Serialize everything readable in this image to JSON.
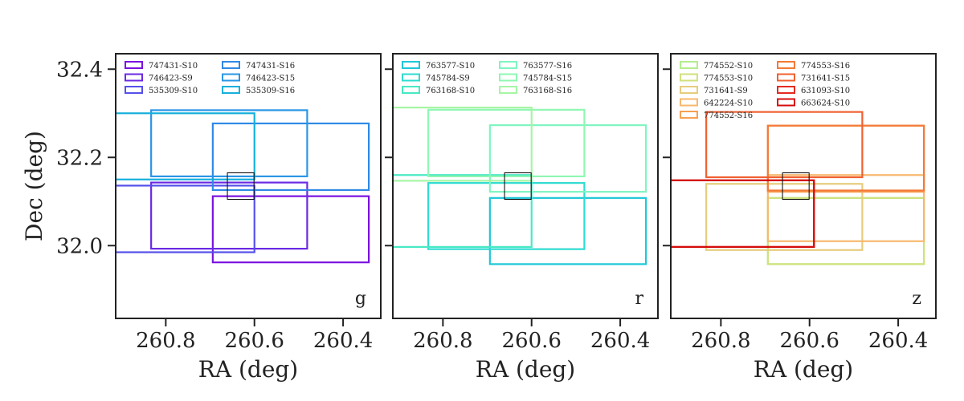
{
  "chart_data": [
    {
      "type": "footprint",
      "band": "g",
      "xlabel": "RA (deg)",
      "ylabel": "Dec (deg)",
      "xlim": [
        260.913,
        260.315
      ],
      "ylim": [
        31.835,
        32.435
      ],
      "xticks": [
        260.8,
        260.6,
        260.4
      ],
      "yticks": [
        32.0,
        32.2,
        32.4
      ],
      "target": {
        "ra": [
          260.661,
          260.601
        ],
        "dec": [
          32.105,
          32.165
        ]
      },
      "series": [
        {
          "name": "747431-S10",
          "color": "#7b12e0",
          "ra": [
            260.694,
            260.342
          ],
          "dec": [
            31.962,
            32.112
          ]
        },
        {
          "name": "746423-S9",
          "color": "#6a2ae3",
          "ra": [
            260.833,
            260.481
          ],
          "dec": [
            31.993,
            32.143
          ]
        },
        {
          "name": "535309-S10",
          "color": "#5550ea",
          "ra": [
            260.966,
            260.6
          ],
          "dec": [
            31.985,
            32.136
          ]
        },
        {
          "name": "747431-S16",
          "color": "#2f8ae5",
          "ra": [
            260.694,
            260.342
          ],
          "dec": [
            32.126,
            32.277
          ]
        },
        {
          "name": "746423-S15",
          "color": "#2a96e6",
          "ra": [
            260.833,
            260.481
          ],
          "dec": [
            32.157,
            32.307
          ]
        },
        {
          "name": "535309-S16",
          "color": "#16b0dc",
          "ra": [
            260.966,
            260.6
          ],
          "dec": [
            32.15,
            32.3
          ]
        }
      ]
    },
    {
      "type": "footprint",
      "band": "r",
      "xlabel": "RA (deg)",
      "ylabel": "",
      "xlim": [
        260.913,
        260.315
      ],
      "ylim": [
        31.835,
        32.435
      ],
      "xticks": [
        260.8,
        260.6,
        260.4
      ],
      "yticks": [
        32.0,
        32.2,
        32.4
      ],
      "target": {
        "ra": [
          260.661,
          260.601
        ],
        "dec": [
          32.105,
          32.165
        ]
      },
      "series": [
        {
          "name": "763577-S10",
          "color": "#1fc8d8",
          "ra": [
            260.694,
            260.342
          ],
          "dec": [
            31.958,
            32.108
          ]
        },
        {
          "name": "745784-S9",
          "color": "#2edbd0",
          "ra": [
            260.833,
            260.481
          ],
          "dec": [
            31.992,
            32.142
          ]
        },
        {
          "name": "763168-S10",
          "color": "#48e9c4",
          "ra": [
            260.966,
            260.6
          ],
          "dec": [
            31.997,
            32.16
          ]
        },
        {
          "name": "763577-S16",
          "color": "#7ff5c0",
          "ra": [
            260.694,
            260.342
          ],
          "dec": [
            32.122,
            32.273
          ]
        },
        {
          "name": "745784-S15",
          "color": "#8ff7b2",
          "ra": [
            260.833,
            260.481
          ],
          "dec": [
            32.157,
            32.308
          ]
        },
        {
          "name": "763168-S16",
          "color": "#a6f5a4",
          "ra": [
            260.966,
            260.6
          ],
          "dec": [
            32.147,
            32.313
          ]
        }
      ]
    },
    {
      "type": "footprint",
      "band": "z",
      "xlabel": "RA (deg)",
      "ylabel": "",
      "xlim": [
        260.913,
        260.315
      ],
      "ylim": [
        31.835,
        32.435
      ],
      "xticks": [
        260.8,
        260.6,
        260.4
      ],
      "yticks": [
        32.0,
        32.2,
        32.4
      ],
      "target": {
        "ra": [
          260.661,
          260.601
        ],
        "dec": [
          32.105,
          32.165
        ]
      },
      "series": [
        {
          "name": "774552-S10",
          "color": "#b4ee8e",
          "ra": [
            260.694,
            260.342
          ],
          "dec": [
            31.958,
            32.108
          ]
        },
        {
          "name": "774553-S10",
          "color": "#cfe27e",
          "ra": [
            260.694,
            260.342
          ],
          "dec": [
            31.958,
            32.108
          ]
        },
        {
          "name": "731641-S9",
          "color": "#e6cc7c",
          "ra": [
            260.833,
            260.481
          ],
          "dec": [
            31.99,
            32.14
          ]
        },
        {
          "name": "642224-S10",
          "color": "#f7b86e",
          "ra": [
            260.694,
            260.342
          ],
          "dec": [
            32.01,
            32.16
          ]
        },
        {
          "name": "774552-S16",
          "color": "#f7a052",
          "ra": [
            260.694,
            260.342
          ],
          "dec": [
            32.122,
            32.272
          ]
        },
        {
          "name": "774553-S16",
          "color": "#f47a38",
          "ra": [
            260.694,
            260.342
          ],
          "dec": [
            32.125,
            32.272
          ]
        },
        {
          "name": "731641-S15",
          "color": "#f06030",
          "ra": [
            260.833,
            260.481
          ],
          "dec": [
            32.155,
            32.303
          ]
        },
        {
          "name": "631093-S10",
          "color": "#e42a20",
          "ra": [
            260.966,
            260.59
          ],
          "dec": [
            31.997,
            32.148
          ]
        },
        {
          "name": "663624-S10",
          "color": "#d40c0c",
          "ra": [
            260.966,
            260.59
          ],
          "dec": [
            31.997,
            32.148
          ]
        }
      ]
    }
  ]
}
